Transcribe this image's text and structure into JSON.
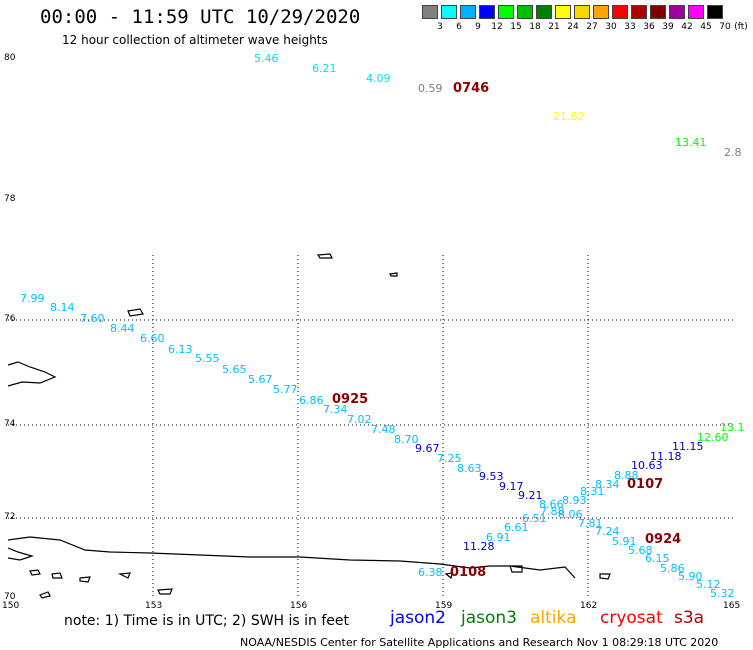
{
  "header": {
    "title": "00:00 - 11:59 UTC 10/29/2020",
    "subtitle": "12 hour collection of altimeter wave heights"
  },
  "legend": {
    "unit": "(ft)",
    "colors": [
      "#808080",
      "#00ffff",
      "#00b0ff",
      "#0000ff",
      "#00ff00",
      "#00c000",
      "#008000",
      "#ffff00",
      "#ffd700",
      "#ffa500",
      "#ff0000",
      "#b00000",
      "#800000",
      "#a000a0",
      "#ff00ff",
      "#000000"
    ],
    "labels": [
      "3",
      "6",
      "9",
      "12",
      "15",
      "18",
      "21",
      "24",
      "27",
      "30",
      "33",
      "36",
      "39",
      "42",
      "45",
      "70"
    ]
  },
  "axes": {
    "lat_labels": [
      "80",
      "78",
      "76",
      "74",
      "72",
      "70"
    ],
    "lon_labels": [
      "150",
      "153",
      "156",
      "159",
      "162",
      "165"
    ]
  },
  "tracks": {
    "top": [
      {
        "v": "5.46",
        "c": "#00e5ee"
      },
      {
        "v": "6.21",
        "c": "#00e5ee"
      },
      {
        "v": "4.09",
        "c": "#00e5ee"
      },
      {
        "v": "0.59",
        "c": "#808080"
      },
      {
        "v": "21.82",
        "c": "#ffff00"
      },
      {
        "v": "13.41",
        "c": "#00ff00"
      },
      {
        "v": "2.8",
        "c": "#808080"
      }
    ],
    "main": [
      {
        "v": "7.99",
        "c": "#00bfff"
      },
      {
        "v": "8.14",
        "c": "#00bfff"
      },
      {
        "v": "7.60",
        "c": "#00bfff"
      },
      {
        "v": "8.44",
        "c": "#00bfff"
      },
      {
        "v": "6.60",
        "c": "#00bfff"
      },
      {
        "v": "6.13",
        "c": "#00bfff"
      },
      {
        "v": "5.55",
        "c": "#00bfff"
      },
      {
        "v": "5.65",
        "c": "#00bfff"
      },
      {
        "v": "5.67",
        "c": "#00bfff"
      },
      {
        "v": "5.77",
        "c": "#00bfff"
      },
      {
        "v": "6.86",
        "c": "#00bfff"
      },
      {
        "v": "7.34",
        "c": "#00bfff"
      },
      {
        "v": "7.02",
        "c": "#00bfff"
      },
      {
        "v": "7.48",
        "c": "#00bfff"
      },
      {
        "v": "8.70",
        "c": "#00bfff"
      },
      {
        "v": "9.67",
        "c": "#0000cd"
      },
      {
        "v": "7.25",
        "c": "#00bfff"
      },
      {
        "v": "8.63",
        "c": "#00bfff"
      },
      {
        "v": "9.53",
        "c": "#0000cd"
      },
      {
        "v": "9.17",
        "c": "#0000cd"
      },
      {
        "v": "9.21",
        "c": "#0000cd"
      },
      {
        "v": "8.66",
        "c": "#00bfff"
      },
      {
        "v": "7.88",
        "c": "#00bfff"
      },
      {
        "v": "8.93",
        "c": "#00bfff"
      },
      {
        "v": "8.06",
        "c": "#00bfff"
      },
      {
        "v": "7.81",
        "c": "#00bfff"
      },
      {
        "v": "7.24",
        "c": "#00bfff"
      },
      {
        "v": "5.91",
        "c": "#00bfff"
      },
      {
        "v": "5.68",
        "c": "#00bfff"
      },
      {
        "v": "6.15",
        "c": "#00bfff"
      },
      {
        "v": "5.86",
        "c": "#00bfff"
      },
      {
        "v": "5.90",
        "c": "#00bfff"
      },
      {
        "v": "5.12",
        "c": "#00bfff"
      },
      {
        "v": "5.32",
        "c": "#00bfff"
      }
    ],
    "rising": [
      {
        "v": "11.28",
        "c": "#0000cd"
      },
      {
        "v": "6.91",
        "c": "#00bfff"
      },
      {
        "v": "6.61",
        "c": "#00bfff"
      },
      {
        "v": "6.51",
        "c": "#00bfff"
      },
      {
        "v": "8.31",
        "c": "#00bfff"
      },
      {
        "v": "8.34",
        "c": "#00bfff"
      },
      {
        "v": "8.88",
        "c": "#00bfff"
      },
      {
        "v": "10.63",
        "c": "#0000cd"
      },
      {
        "v": "11.18",
        "c": "#0000cd"
      },
      {
        "v": "11.15",
        "c": "#0000cd"
      },
      {
        "v": "12.60",
        "c": "#00ff00"
      },
      {
        "v": "13.1",
        "c": "#00ff00"
      },
      {
        "v": "6.38",
        "c": "#00bfff"
      }
    ],
    "times": [
      "0746",
      "0925",
      "0107",
      "0924",
      "0108"
    ]
  },
  "note": "note: 1) Time is in UTC; 2) SWH is in feet",
  "satellites": [
    {
      "name": "jason2",
      "color": "#0000ff"
    },
    {
      "name": "jason3",
      "color": "#008000"
    },
    {
      "name": "altika",
      "color": "#ffa500"
    },
    {
      "name": "cryosat",
      "color": "#ff0000"
    },
    {
      "name": "s3a",
      "color": "#b00000"
    }
  ],
  "footer": "NOAA/NESDIS Center for Satellite Applications and Research   Nov  1 08:29:18 UTC 2020"
}
